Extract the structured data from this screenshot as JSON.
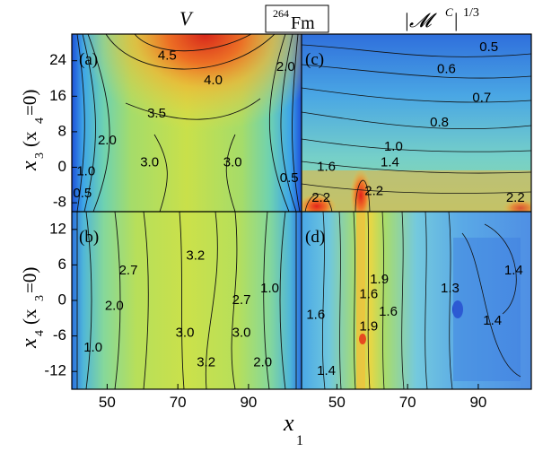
{
  "figure": {
    "title_left": "V",
    "title_center_mass": "264",
    "title_center_element": "Fm",
    "title_right_main": "|𝓜",
    "title_right_sup_c": "C",
    "title_right_exp": "1/3"
  },
  "chart_data": [
    {
      "type": "heatmap",
      "panel": "(a)",
      "quantity": "V",
      "x_range": [
        40,
        105
      ],
      "y_range": [
        -10,
        30
      ],
      "yticks": [
        24,
        16,
        8,
        0,
        -8
      ],
      "contour_labels": [
        {
          "text": "4.5",
          "x": 67,
          "y": 25
        },
        {
          "text": "4.0",
          "x": 80,
          "y": 19.5
        },
        {
          "text": "3.5",
          "x": 64,
          "y": 12
        },
        {
          "text": "2.0",
          "x": 100.5,
          "y": 22.5
        },
        {
          "text": "2.0",
          "x": 50,
          "y": 6
        },
        {
          "text": "3.0",
          "x": 62,
          "y": 1
        },
        {
          "text": "3.0",
          "x": 85.5,
          "y": 1
        },
        {
          "text": "1.0",
          "x": 44,
          "y": -1
        },
        {
          "text": "0.5",
          "x": 101.5,
          "y": -2.5
        },
        {
          "text": "0.5",
          "x": 43,
          "y": -6
        }
      ]
    },
    {
      "type": "heatmap",
      "panel": "(c)",
      "quantity": "|M^C|^(1/3)",
      "x_range": [
        40,
        105
      ],
      "y_range": [
        -10,
        30
      ],
      "contour_labels": [
        {
          "text": "0.5",
          "x": 93,
          "y": 27
        },
        {
          "text": "0.6",
          "x": 81,
          "y": 22
        },
        {
          "text": "0.7",
          "x": 91,
          "y": 15.5
        },
        {
          "text": "0.8",
          "x": 79,
          "y": 10
        },
        {
          "text": "1.0",
          "x": 66,
          "y": 4.5
        },
        {
          "text": "1.4",
          "x": 65,
          "y": 1
        },
        {
          "text": "1.6",
          "x": 47,
          "y": 0
        },
        {
          "text": "2.2",
          "x": 45.5,
          "y": -7
        },
        {
          "text": "2.2",
          "x": 60.5,
          "y": -5.5
        },
        {
          "text": "2.2",
          "x": 100.5,
          "y": -7
        }
      ]
    },
    {
      "type": "heatmap",
      "panel": "(b)",
      "quantity": "V",
      "x_range": [
        40,
        105
      ],
      "y_range": [
        -15,
        15
      ],
      "xticks": [
        50,
        70,
        90
      ],
      "yticks": [
        12,
        6,
        0,
        -6,
        -12
      ],
      "contour_labels": [
        {
          "text": "3.2",
          "x": 75,
          "y": 7.5
        },
        {
          "text": "2.7",
          "x": 56,
          "y": 5
        },
        {
          "text": "2.0",
          "x": 52,
          "y": -1
        },
        {
          "text": "1.0",
          "x": 96,
          "y": 2
        },
        {
          "text": "2.7",
          "x": 88,
          "y": 0
        },
        {
          "text": "3.0",
          "x": 72,
          "y": -5.5
        },
        {
          "text": "3.0",
          "x": 88,
          "y": -5.5
        },
        {
          "text": "1.0",
          "x": 46,
          "y": -8
        },
        {
          "text": "3.2",
          "x": 78,
          "y": -10.5
        },
        {
          "text": "2.0",
          "x": 94,
          "y": -10.5
        }
      ]
    },
    {
      "type": "heatmap",
      "panel": "(d)",
      "quantity": "|M^C|^(1/3)",
      "x_range": [
        40,
        105
      ],
      "y_range": [
        -15,
        15
      ],
      "xticks": [
        50,
        70,
        90
      ],
      "contour_labels": [
        {
          "text": "1.9",
          "x": 62,
          "y": 3.5
        },
        {
          "text": "1.3",
          "x": 82,
          "y": 2
        },
        {
          "text": "1.4",
          "x": 100,
          "y": 5
        },
        {
          "text": "1.6",
          "x": 59,
          "y": 1
        },
        {
          "text": "1.6",
          "x": 44,
          "y": -2.5
        },
        {
          "text": "1.6",
          "x": 64.5,
          "y": -2
        },
        {
          "text": "1.9",
          "x": 59,
          "y": -4.5
        },
        {
          "text": "1.4",
          "x": 94,
          "y": -3.5
        },
        {
          "text": "1.4",
          "x": 47,
          "y": -12
        }
      ]
    }
  ],
  "axes": {
    "x_label_main": "x",
    "x_label_sub": "1",
    "y_label_top_main": "x",
    "y_label_top_sub": "3",
    "y_label_top_cond": "(x",
    "y_label_top_cond_sub": "4",
    "y_label_top_cond_end": "=0)",
    "y_label_bottom_main": "x",
    "y_label_bottom_sub": "4",
    "y_label_bottom_cond": "(x",
    "y_label_bottom_cond_sub": "3",
    "y_label_bottom_cond_end": "=0)"
  }
}
